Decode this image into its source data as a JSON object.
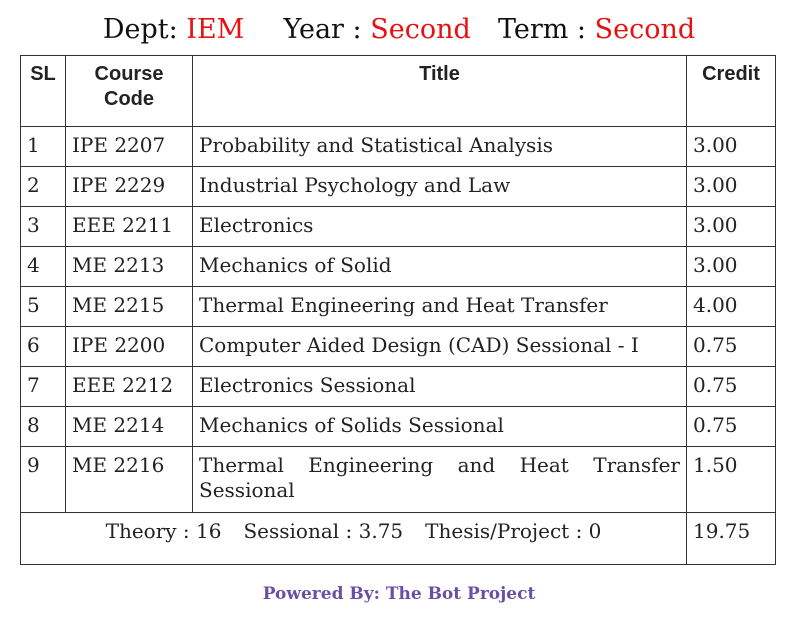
{
  "header": {
    "dept_label": "Dept:",
    "dept_value": "IEM",
    "year_label": "Year :",
    "year_value": "Second",
    "term_label": "Term :",
    "term_value": "Second",
    "accent_color": "#e81010"
  },
  "table": {
    "columns": [
      "SL",
      "Course Code",
      "Title",
      "Credit"
    ],
    "rows": [
      {
        "sl": "1",
        "code": "IPE 2207",
        "title": "Probability and Statistical Analysis",
        "credit": "3.00"
      },
      {
        "sl": "2",
        "code": "IPE 2229",
        "title": "Industrial Psychology and Law",
        "credit": "3.00"
      },
      {
        "sl": "3",
        "code": "EEE 2211",
        "title": "Electronics",
        "credit": "3.00"
      },
      {
        "sl": "4",
        "code": "ME 2213",
        "title": "Mechanics of Solid",
        "credit": "3.00"
      },
      {
        "sl": "5",
        "code": "ME 2215",
        "title": "Thermal Engineering and Heat Transfer",
        "credit": "4.00"
      },
      {
        "sl": "6",
        "code": "IPE 2200",
        "title": "Computer Aided Design (CAD) Sessional - I",
        "credit": "0.75"
      },
      {
        "sl": "7",
        "code": "EEE 2212",
        "title": "Electronics Sessional",
        "credit": "0.75"
      },
      {
        "sl": "8",
        "code": "ME 2214",
        "title": "Mechanics of Solids Sessional",
        "credit": "0.75"
      },
      {
        "sl": "9",
        "code": "ME 2216",
        "title": "Thermal Engineering and Heat Transfer Sessional",
        "credit": "1.50"
      }
    ],
    "summary": {
      "theory": "Theory : 16",
      "sessional": "Sessional : 3.75",
      "thesis": "Thesis/Project : 0",
      "total_credit": "19.75"
    }
  },
  "footer": {
    "text": "Powered By: The Bot Project",
    "color": "#6a4fa5"
  }
}
